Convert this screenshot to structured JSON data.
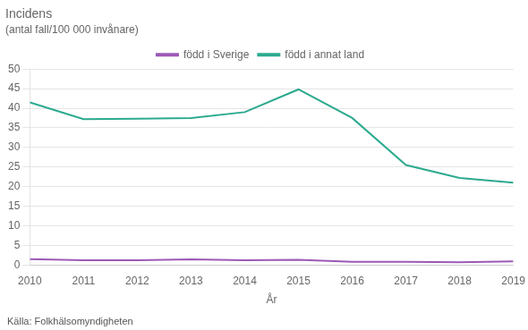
{
  "chart_data": {
    "type": "line",
    "title": "Incidens",
    "subtitle": "(antal fall/100 000 invånare)",
    "x_label": "År",
    "annotations": [
      "Källa: Folkhälsomyndigheten"
    ],
    "x": [
      2010,
      2011,
      2012,
      2013,
      2014,
      2015,
      2016,
      2017,
      2018,
      2019
    ],
    "series": [
      {
        "name": "född i Sverige",
        "color": "#9b59b6",
        "values": [
          1.5,
          1.2,
          1.2,
          1.4,
          1.2,
          1.3,
          0.8,
          0.8,
          0.7,
          0.9
        ]
      },
      {
        "name": "född i annat land",
        "color": "#2baa8e",
        "values": [
          41.5,
          37.2,
          37.3,
          37.5,
          39.0,
          44.8,
          37.5,
          25.5,
          22.2,
          21.0
        ]
      }
    ],
    "xlim": [
      2010,
      2019
    ],
    "xticks": [
      2010,
      2011,
      2012,
      2013,
      2014,
      2015,
      2016,
      2017,
      2018,
      2019
    ],
    "ylim": [
      0,
      50
    ],
    "yticks": [
      0,
      5,
      10,
      15,
      20,
      25,
      30,
      35,
      40,
      45,
      50
    ],
    "grid": "y",
    "legend": "top"
  }
}
